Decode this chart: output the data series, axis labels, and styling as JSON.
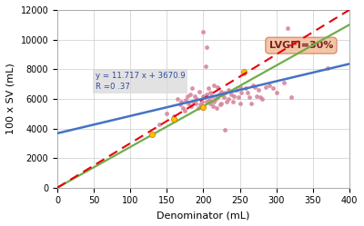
{
  "xlabel": "Denominator (mL)",
  "ylabel": "100 x SV (mL)",
  "xlim": [
    0,
    400
  ],
  "ylim": [
    0,
    12000
  ],
  "xticks": [
    0,
    50,
    100,
    150,
    200,
    250,
    300,
    350,
    400
  ],
  "yticks": [
    0,
    2000,
    4000,
    6000,
    8000,
    10000,
    12000
  ],
  "regression_slope": 11.717,
  "regression_intercept": 3670.9,
  "regression_label_line1": "y = 11.717 x + 3670.9",
  "regression_label_line2": "R =0 .37",
  "lvgfi_label": "LVGFI=30%",
  "lvgfi_slope": 30,
  "green_slope": 27.5,
  "scatter_color": "#d4879d",
  "regression_line_color": "#4472c4",
  "lvgfi_line_color": "#e8000a",
  "green_line_color": "#70ad47",
  "orange_points_x": [
    130,
    160,
    200,
    255
  ],
  "orange_points_y": [
    3600,
    4650,
    5450,
    7800
  ],
  "scatter_x": [
    140,
    150,
    160,
    165,
    168,
    170,
    172,
    175,
    176,
    178,
    180,
    182,
    183,
    185,
    186,
    188,
    190,
    191,
    193,
    195,
    196,
    198,
    200,
    200,
    202,
    203,
    205,
    205,
    207,
    208,
    210,
    210,
    212,
    213,
    215,
    215,
    217,
    218,
    220,
    220,
    222,
    223,
    225,
    225,
    228,
    230,
    230,
    232,
    235,
    235,
    238,
    240,
    242,
    245,
    248,
    250,
    250,
    252,
    255,
    258,
    260,
    263,
    265,
    268,
    270,
    273,
    275,
    278,
    280,
    285,
    290,
    295,
    300,
    310,
    320,
    370
  ],
  "scatter_y": [
    4300,
    5000,
    4800,
    6000,
    5600,
    5800,
    5400,
    5200,
    5900,
    6200,
    5700,
    6300,
    5500,
    6700,
    5800,
    6200,
    5700,
    6000,
    5400,
    6500,
    5600,
    5800,
    5400,
    6200,
    6100,
    8200,
    6300,
    5800,
    6700,
    5900,
    5700,
    6400,
    6200,
    5500,
    6900,
    5800,
    6000,
    5400,
    6100,
    6800,
    6300,
    5600,
    5700,
    6500,
    6100,
    6400,
    3900,
    5800,
    6000,
    6600,
    6300,
    5800,
    6200,
    6600,
    6100,
    5700,
    6800,
    6400,
    7700,
    6700,
    6400,
    6100,
    5700,
    6900,
    6800,
    6200,
    6600,
    6100,
    6000,
    6800,
    6900,
    6700,
    6400,
    7100,
    6100,
    8100
  ],
  "extra_scatter_x": [
    200,
    205,
    315
  ],
  "extra_scatter_y": [
    10500,
    9500,
    10800
  ],
  "background_color": "#ffffff",
  "grid_color": "#cccccc",
  "annot_box_color": "#d9d9d9",
  "annot_text_color": "#2e4a9e",
  "lvgfi_box_face": "#f4c2a1",
  "lvgfi_box_edge": "#d4896a",
  "lvgfi_text_color": "#7b2020"
}
